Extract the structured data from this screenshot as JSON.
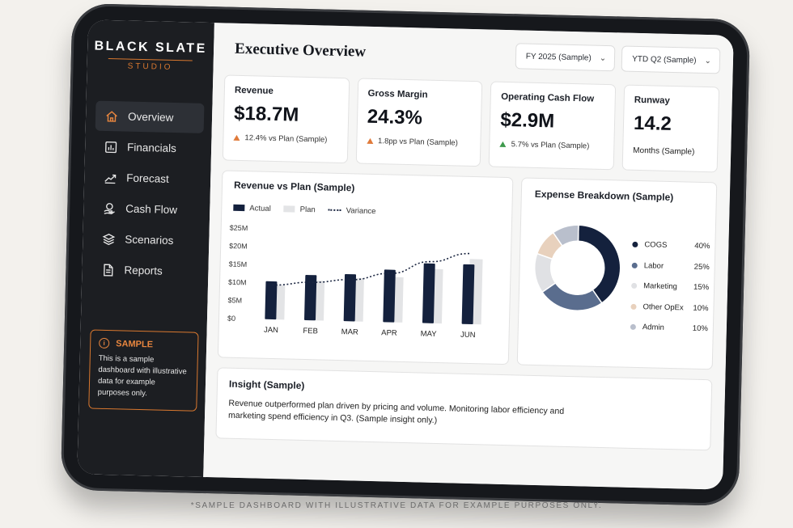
{
  "sidebar": {
    "logo_main": "BLACK SLATE",
    "logo_sub": "STUDIO",
    "items": [
      {
        "label": "Overview",
        "icon": "home-icon",
        "active": true
      },
      {
        "label": "Financials",
        "icon": "bar-chart-icon",
        "active": false
      },
      {
        "label": "Forecast",
        "icon": "trend-line-icon",
        "active": false
      },
      {
        "label": "Cash Flow",
        "icon": "coins-icon",
        "active": false
      },
      {
        "label": "Scenarios",
        "icon": "layers-icon",
        "active": false
      },
      {
        "label": "Reports",
        "icon": "document-icon",
        "active": false
      }
    ],
    "sample": {
      "title": "SAMPLE",
      "text": "This is a sample dashboard with illustrative data for example purposes only."
    }
  },
  "header": {
    "title": "Executive Overview",
    "fiscal_year": "FY 2025 (Sample)",
    "period": "YTD Q2 (Sample)"
  },
  "kpis": [
    {
      "label": "Revenue",
      "value": "$18.7M",
      "delta": "12.4% vs Plan (Sample)",
      "trend": "up-orange"
    },
    {
      "label": "Gross Margin",
      "value": "24.3%",
      "delta": "1.8pp vs Plan (Sample)",
      "trend": "up-orange"
    },
    {
      "label": "Operating Cash Flow",
      "value": "$2.9M",
      "delta": "5.7% vs Plan (Sample)",
      "trend": "up-green"
    },
    {
      "label": "Runway",
      "value": "14.2",
      "sub": "Months (Sample)"
    }
  ],
  "revenue_chart": {
    "title": "Revenue vs Plan (Sample)",
    "legend": {
      "actual": "Actual",
      "plan": "Plan",
      "variance": "Variance"
    }
  },
  "expense_chart": {
    "title": "Expense Breakdown (Sample)"
  },
  "chart_data": [
    {
      "type": "bar",
      "title": "Revenue vs Plan (Sample)",
      "categories": [
        "JAN",
        "FEB",
        "MAR",
        "APR",
        "MAY",
        "JUN"
      ],
      "y_ticks": [
        "$0",
        "$5M",
        "$10M",
        "$15M",
        "$20M",
        "$25M"
      ],
      "ylim": [
        0,
        25
      ],
      "series": [
        {
          "name": "Actual",
          "values": [
            10.5,
            12.5,
            13,
            14.5,
            16.5,
            16.5
          ],
          "color": "#14213d"
        },
        {
          "name": "Plan",
          "values": [
            9.5,
            11,
            12,
            12.5,
            15,
            18
          ],
          "color": "#e3e4e6"
        },
        {
          "name": "Variance",
          "values": [
            9.5,
            10.5,
            11.5,
            13.5,
            17,
            19.5
          ],
          "color": "#1a2540",
          "style": "dotted-line"
        }
      ],
      "legend_position": "top-left",
      "grid": false
    },
    {
      "type": "pie",
      "title": "Expense Breakdown (Sample)",
      "labels": [
        "COGS",
        "Labor",
        "Marketing",
        "Other OpEx",
        "Admin"
      ],
      "values": [
        40,
        25,
        15,
        10,
        10
      ],
      "display": [
        "40%",
        "25%",
        "15%",
        "10%",
        "10%"
      ],
      "colors": [
        "#14213d",
        "#5a6d8e",
        "#e0e1e4",
        "#e8d1bd",
        "#b9bfcc"
      ],
      "donut": true
    }
  ],
  "insight": {
    "title": "Insight (Sample)",
    "text": "Revenue outperformed plan driven by pricing and volume. Monitoring labor efficiency and marketing spend efficiency in Q3. (Sample insight only.)"
  },
  "footer_note": "*SAMPLE DASHBOARD WITH ILLUSTRATIVE DATA FOR EXAMPLE PURPOSES ONLY.",
  "colors": {
    "accent": "#d9782f",
    "navy": "#14213d",
    "sidebar": "#1c1e22"
  }
}
